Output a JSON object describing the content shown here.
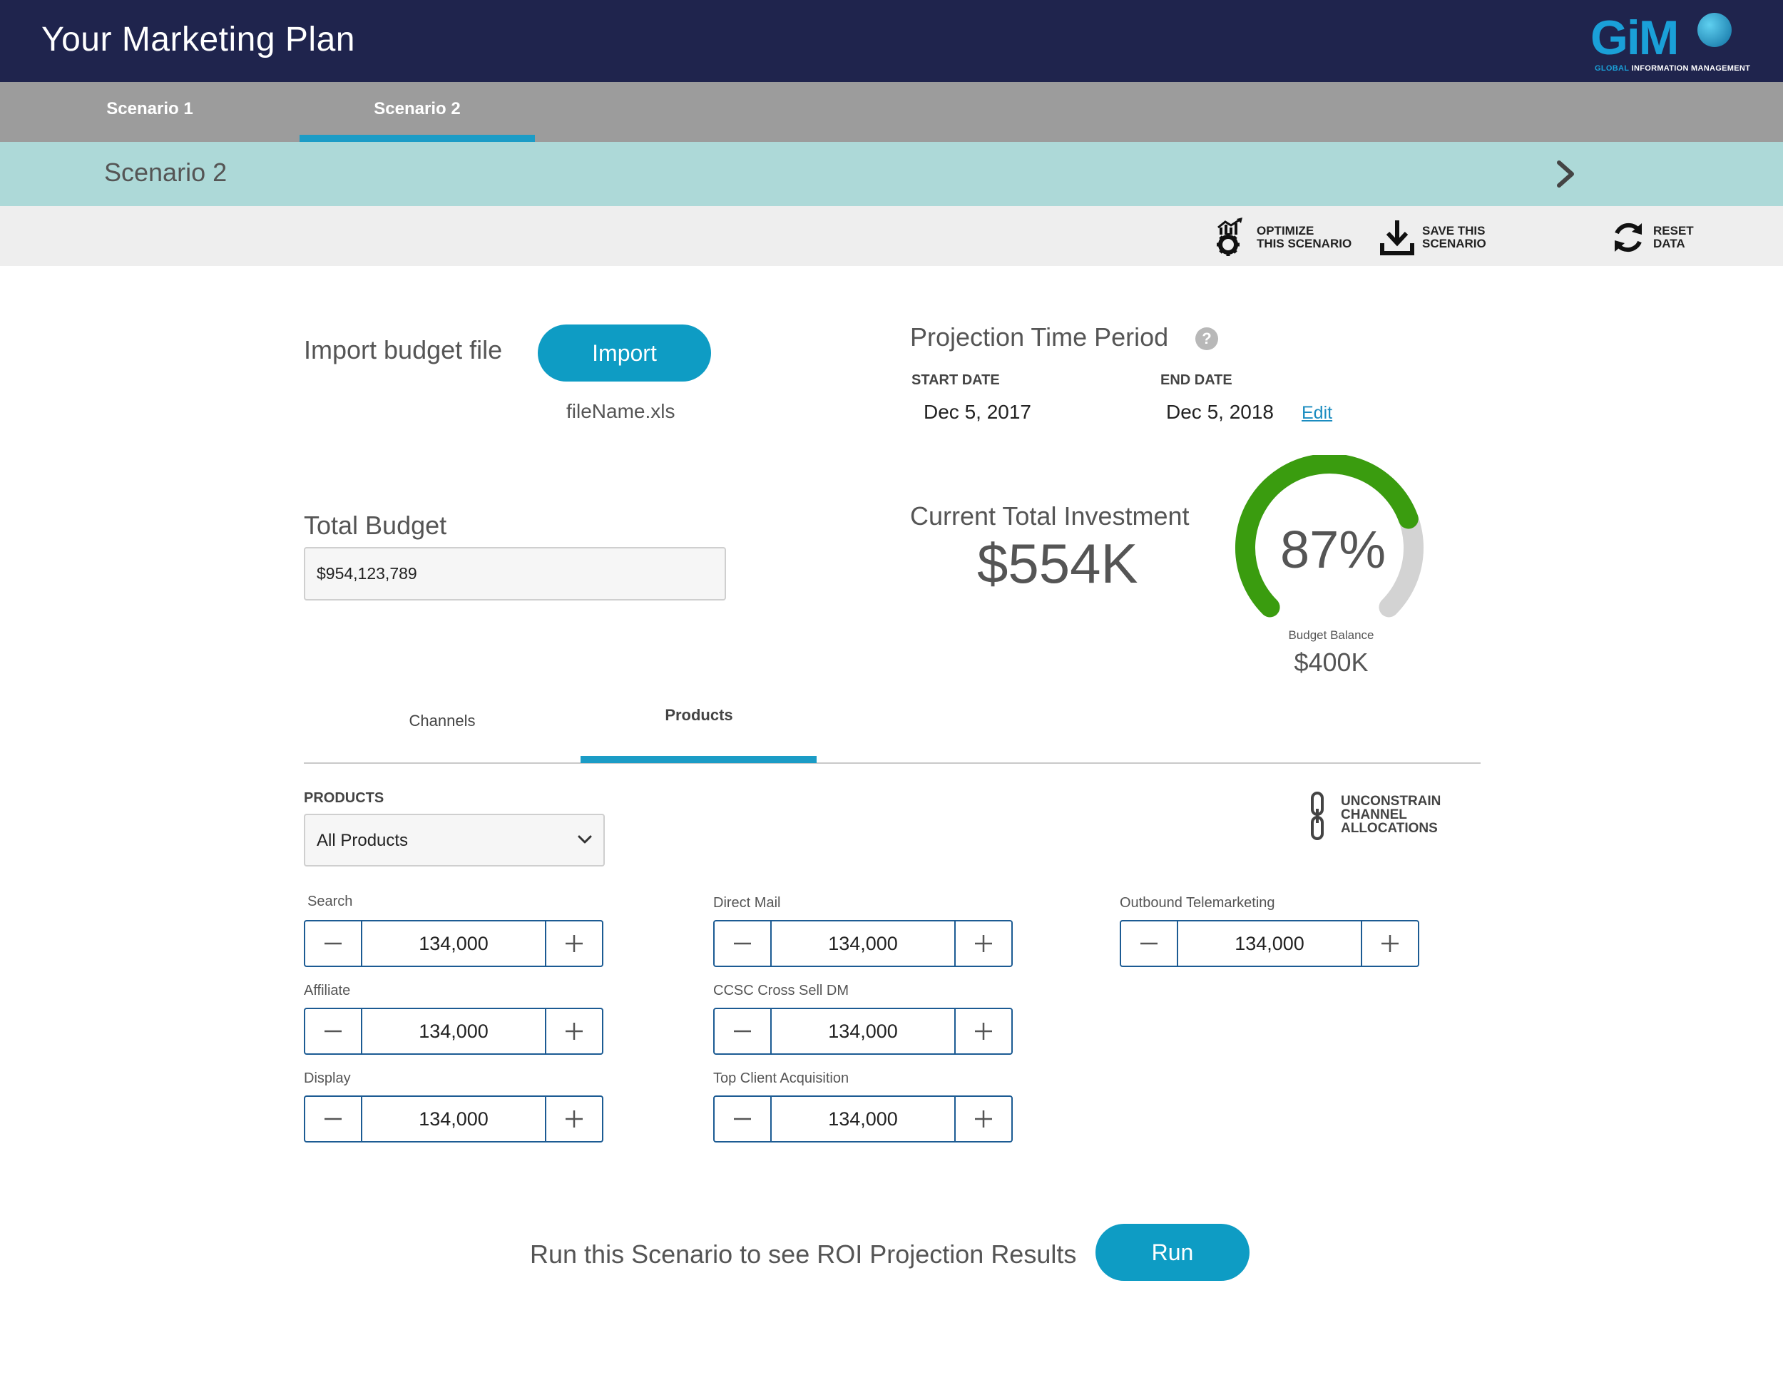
{
  "header": {
    "title": "Your Marketing Plan",
    "logo_text": "GiM",
    "logo_subtitle_accent": "GLOBAL",
    "logo_subtitle": "INFORMATION MANAGEMENT"
  },
  "scenario_tabs": [
    {
      "label": "Scenario 1",
      "active": false
    },
    {
      "label": "Scenario 2",
      "active": true
    }
  ],
  "scenario_header": {
    "title": "Scenario 2",
    "next_icon": "chevron-right-icon"
  },
  "actions": {
    "optimize": {
      "label": "OPTIMIZE\nTHIS SCENARIO",
      "icon": "optimize-gear-chart-icon"
    },
    "save": {
      "label": "SAVE THIS\nSCENARIO",
      "icon": "download-icon"
    },
    "reset": {
      "label": "RESET\nDATA",
      "icon": "refresh-icon"
    }
  },
  "import": {
    "label": "Import budget file",
    "button": "Import",
    "file_name": "fileName.xls"
  },
  "projection": {
    "title": "Projection Time Period",
    "help": "?",
    "start_label": "START DATE",
    "start_value": "Dec 5, 2017",
    "end_label": "END DATE",
    "end_value": "Dec 5, 2018",
    "edit": "Edit"
  },
  "total_budget": {
    "label": "Total Budget",
    "value": "$954,123,789"
  },
  "investment": {
    "label": "Current Total Investment",
    "value": "$554K"
  },
  "gauge": {
    "percent_text": "87%",
    "fraction": 0.87,
    "sublabel": "Budget Balance",
    "balance": "$400K",
    "colors": {
      "fill": "#3a9c0f",
      "track": "#d3d3d3"
    }
  },
  "content_tabs": [
    {
      "label": "Channels",
      "active": false
    },
    {
      "label": "Products",
      "active": true
    }
  ],
  "products": {
    "label": "PRODUCTS",
    "selected": "All Products"
  },
  "unconstrain": {
    "label": "UNCONSTRAIN\nCHANNEL\nALLOCATIONS",
    "icon": "chain-link-icon"
  },
  "steppers": [
    {
      "label": "Search",
      "value": "134,000"
    },
    {
      "label": "Direct Mail",
      "value": "134,000"
    },
    {
      "label": "Outbound Telemarketing",
      "value": "134,000"
    },
    {
      "label": "Affiliate",
      "value": "134,000"
    },
    {
      "label": "CCSC Cross Sell DM",
      "value": "134,000"
    },
    {
      "label": "Display",
      "value": "134,000"
    },
    {
      "label": "Top Client Acquisition",
      "value": "134,000"
    }
  ],
  "run": {
    "text": "Run this Scenario to see ROI Projection Results",
    "button": "Run"
  },
  "colors": {
    "header_bg": "#1f244d",
    "accent": "#0e9cc4",
    "stepper_border": "#1c5b93",
    "strip_bg": "#add9d8"
  }
}
